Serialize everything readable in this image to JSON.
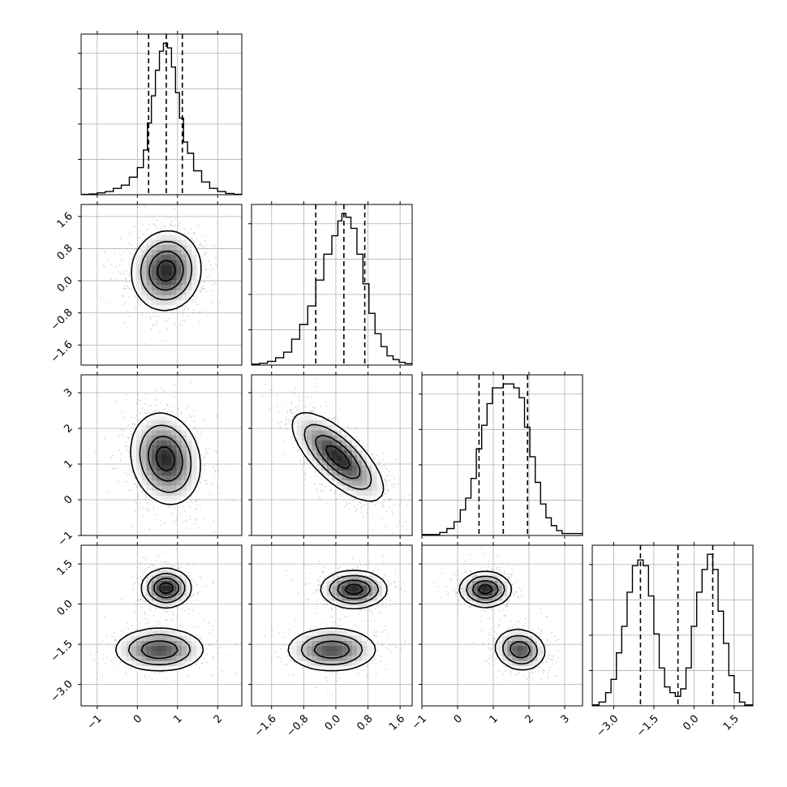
{
  "chart_data": {
    "type": "corner",
    "grid": true,
    "parameters": [
      {
        "range": [
          -1.4,
          2.6
        ],
        "ticks": [
          -1,
          0,
          1,
          2
        ],
        "tick_labels": [
          "−1",
          "0",
          "1",
          "2"
        ],
        "quantiles": [
          0.28,
          0.72,
          1.12
        ],
        "hist_bins": [
          [
            -1.3,
            0.002
          ],
          [
            -1.1,
            0.005
          ],
          [
            -0.9,
            0.012
          ],
          [
            -0.7,
            0.02
          ],
          [
            -0.5,
            0.04
          ],
          [
            -0.3,
            0.06
          ],
          [
            -0.1,
            0.11
          ],
          [
            0.1,
            0.17
          ],
          [
            0.2,
            0.28
          ],
          [
            0.3,
            0.45
          ],
          [
            0.4,
            0.62
          ],
          [
            0.5,
            0.78
          ],
          [
            0.6,
            0.9
          ],
          [
            0.7,
            0.95
          ],
          [
            0.8,
            0.92
          ],
          [
            0.9,
            0.8
          ],
          [
            1.0,
            0.64
          ],
          [
            1.1,
            0.48
          ],
          [
            1.2,
            0.33
          ],
          [
            1.3,
            0.26
          ],
          [
            1.5,
            0.15
          ],
          [
            1.7,
            0.08
          ],
          [
            1.9,
            0.04
          ],
          [
            2.1,
            0.02
          ],
          [
            2.3,
            0.008
          ],
          [
            2.5,
            0.003
          ]
        ]
      },
      {
        "range": [
          -2.1,
          1.9
        ],
        "ticks": [
          -1.6,
          -0.8,
          0.0,
          0.8,
          1.6
        ],
        "tick_labels": [
          "−1.6",
          "−0.8",
          "0.0",
          "0.8",
          "1.6"
        ],
        "quantiles": [
          -0.5,
          0.2,
          0.72
        ],
        "hist_bins": [
          [
            -2.0,
            0.005
          ],
          [
            -1.8,
            0.01
          ],
          [
            -1.6,
            0.02
          ],
          [
            -1.4,
            0.04
          ],
          [
            -1.2,
            0.07
          ],
          [
            -1.0,
            0.14
          ],
          [
            -0.8,
            0.22
          ],
          [
            -0.6,
            0.32
          ],
          [
            -0.4,
            0.46
          ],
          [
            -0.2,
            0.6
          ],
          [
            0.0,
            0.7
          ],
          [
            0.1,
            0.78
          ],
          [
            0.2,
            0.82
          ],
          [
            0.3,
            0.8
          ],
          [
            0.45,
            0.74
          ],
          [
            0.6,
            0.6
          ],
          [
            0.75,
            0.44
          ],
          [
            0.9,
            0.28
          ],
          [
            1.05,
            0.17
          ],
          [
            1.2,
            0.1
          ],
          [
            1.35,
            0.05
          ],
          [
            1.5,
            0.03
          ],
          [
            1.65,
            0.015
          ],
          [
            1.8,
            0.008
          ]
        ]
      },
      {
        "range": [
          -1.0,
          3.5
        ],
        "ticks": [
          -1,
          0,
          1,
          2,
          3
        ],
        "tick_labels": [
          "−1",
          "0",
          "1",
          "2",
          "3"
        ],
        "quantiles": [
          0.6,
          1.28,
          1.96
        ],
        "hist_bins": [
          [
            -0.6,
            0.005
          ],
          [
            -0.4,
            0.015
          ],
          [
            -0.2,
            0.035
          ],
          [
            0.0,
            0.07
          ],
          [
            0.15,
            0.13
          ],
          [
            0.3,
            0.19
          ],
          [
            0.45,
            0.29
          ],
          [
            0.6,
            0.44
          ],
          [
            0.75,
            0.56
          ],
          [
            0.9,
            0.67
          ],
          [
            1.05,
            0.75
          ],
          [
            1.2,
            0.75
          ],
          [
            1.35,
            0.77
          ],
          [
            1.5,
            0.77
          ],
          [
            1.65,
            0.75
          ],
          [
            1.8,
            0.7
          ],
          [
            1.95,
            0.55
          ],
          [
            2.1,
            0.4
          ],
          [
            2.25,
            0.27
          ],
          [
            2.4,
            0.16
          ],
          [
            2.55,
            0.09
          ],
          [
            2.7,
            0.05
          ],
          [
            2.85,
            0.025
          ],
          [
            3.0,
            0.01
          ]
        ]
      },
      {
        "range": [
          -3.8,
          2.2
        ],
        "ticks": [
          -3.0,
          -1.5,
          0.0,
          1.5
        ],
        "tick_labels": [
          "−3.0",
          "−1.5",
          "0.0",
          "1.5"
        ],
        "quantiles": [
          -2.0,
          -0.6,
          0.7
        ],
        "hist_bins": [
          [
            -3.7,
            0.005
          ],
          [
            -3.4,
            0.02
          ],
          [
            -3.2,
            0.07
          ],
          [
            -3.0,
            0.14
          ],
          [
            -2.8,
            0.28
          ],
          [
            -2.6,
            0.42
          ],
          [
            -2.4,
            0.6
          ],
          [
            -2.2,
            0.74
          ],
          [
            -2.0,
            0.77
          ],
          [
            -1.8,
            0.74
          ],
          [
            -1.6,
            0.58
          ],
          [
            -1.4,
            0.38
          ],
          [
            -1.2,
            0.2
          ],
          [
            -1.0,
            0.1
          ],
          [
            -0.8,
            0.07
          ],
          [
            -0.6,
            0.05
          ],
          [
            -0.4,
            0.09
          ],
          [
            -0.2,
            0.2
          ],
          [
            0.0,
            0.42
          ],
          [
            0.2,
            0.6
          ],
          [
            0.4,
            0.72
          ],
          [
            0.6,
            0.8
          ],
          [
            0.8,
            0.72
          ],
          [
            1.0,
            0.5
          ],
          [
            1.2,
            0.33
          ],
          [
            1.4,
            0.16
          ],
          [
            1.6,
            0.07
          ],
          [
            1.8,
            0.02
          ],
          [
            2.0,
            0.005
          ]
        ]
      }
    ],
    "density_2d": [
      {
        "row": 1,
        "col": 0,
        "blobs": [
          {
            "cx": 0.72,
            "cy": 0.25,
            "sx": 0.42,
            "sy": 0.48,
            "rho": 0.05,
            "w": 1
          }
        ]
      },
      {
        "row": 2,
        "col": 0,
        "blobs": [
          {
            "cx": 0.7,
            "cy": 1.15,
            "sx": 0.42,
            "sy": 0.62,
            "rho": -0.15,
            "w": 1
          }
        ]
      },
      {
        "row": 2,
        "col": 1,
        "blobs": [
          {
            "cx": 0.05,
            "cy": 1.2,
            "sx": 0.55,
            "sy": 0.6,
            "rho": -0.72,
            "w": 1
          }
        ]
      },
      {
        "row": 3,
        "col": 0,
        "blobs": [
          {
            "cx": 0.72,
            "cy": 0.6,
            "sx": 0.3,
            "sy": 0.35,
            "rho": 0.0,
            "w": 0.55
          },
          {
            "cx": 0.55,
            "cy": -1.7,
            "sx": 0.55,
            "sy": 0.4,
            "rho": 0.0,
            "w": 0.45
          }
        ]
      },
      {
        "row": 3,
        "col": 1,
        "blobs": [
          {
            "cx": 0.45,
            "cy": 0.55,
            "sx": 0.4,
            "sy": 0.34,
            "rho": 0.0,
            "w": 0.55
          },
          {
            "cx": -0.1,
            "cy": -1.7,
            "sx": 0.55,
            "sy": 0.4,
            "rho": 0.0,
            "w": 0.45
          }
        ]
      },
      {
        "row": 3,
        "col": 2,
        "blobs": [
          {
            "cx": 0.78,
            "cy": 0.55,
            "sx": 0.35,
            "sy": 0.32,
            "rho": 0.0,
            "w": 0.55
          },
          {
            "cx": 1.75,
            "cy": -1.7,
            "sx": 0.35,
            "sy": 0.38,
            "rho": -0.1,
            "w": 0.45
          }
        ]
      }
    ]
  }
}
